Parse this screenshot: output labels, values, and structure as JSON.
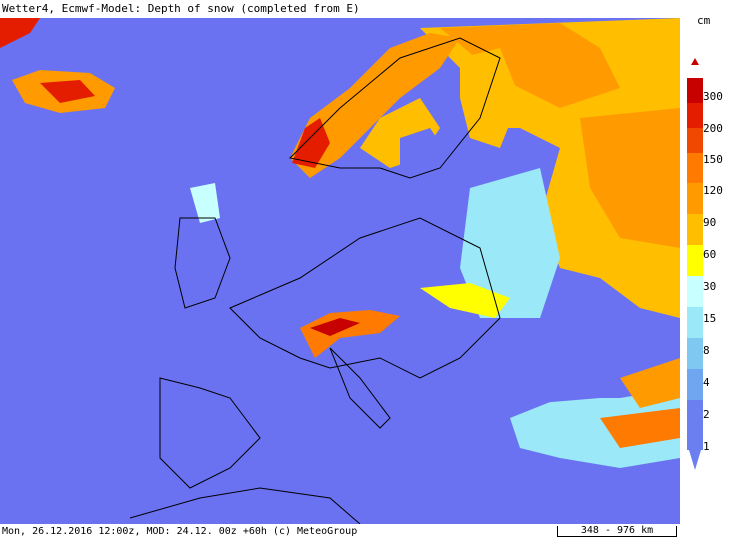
{
  "title": "Wetter4, Ecmwf-Model: Depth of snow (completed from E)",
  "footer": {
    "info": "Mon, 26.12.2016 12:00z, MOD: 24.12. 00z +60h (c) MeteoGroup",
    "scale": "348 - 976 km"
  },
  "legend": {
    "unit": "cm",
    "levels": [
      "300",
      "200",
      "150",
      "120",
      "90",
      "60",
      "30",
      "15",
      "8",
      "4",
      "2",
      "1"
    ],
    "colors": [
      "#c70000",
      "#e41c00",
      "#f04800",
      "#ff7a00",
      "#ff9a00",
      "#ffbf00",
      "#ffff00",
      "#c8ffff",
      "#9be8f8",
      "#7fc8f2",
      "#6fa6ef",
      "#6b7ff0"
    ]
  },
  "map_colors": {
    "sea": "#6a72f2",
    "land_no_snow": "#6a72f2"
  }
}
